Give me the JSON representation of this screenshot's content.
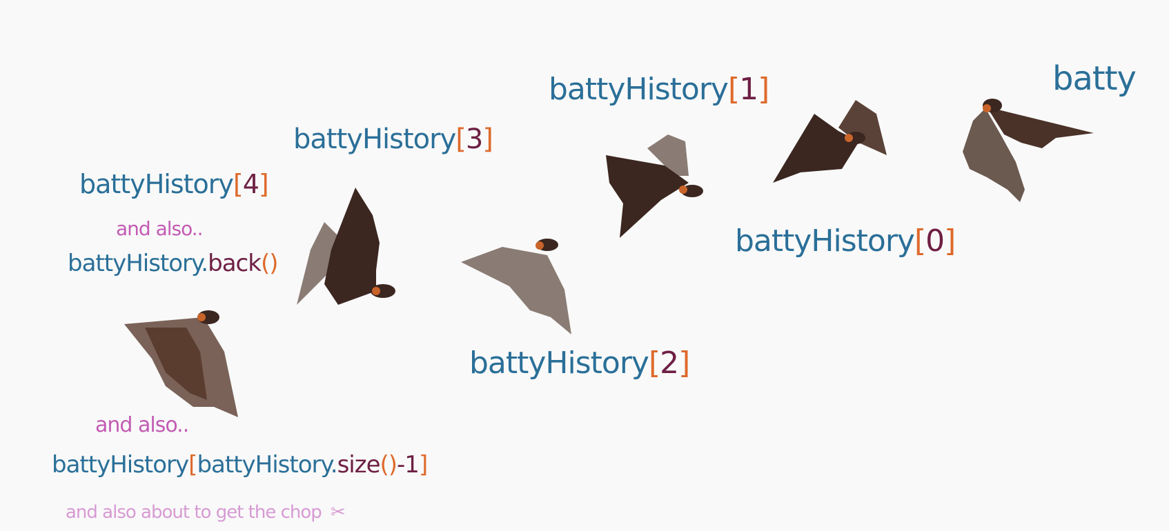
{
  "labels": {
    "batty": "batty",
    "hist1": {
      "name": "battyHistory",
      "open": "[",
      "index": "1",
      "close": "]"
    },
    "hist3": {
      "name": "battyHistory",
      "open": "[",
      "index": "3",
      "close": "]"
    },
    "hist4": {
      "name": "battyHistory",
      "open": "[",
      "index": "4",
      "close": "]"
    },
    "hist0": {
      "name": "battyHistory",
      "open": "[",
      "index": "0",
      "close": "]"
    },
    "hist2": {
      "name": "battyHistory",
      "open": "[",
      "index": "2",
      "close": "]"
    },
    "and_also_1": "and also..",
    "back": {
      "name": "battyHistory.",
      "method": "back",
      "parens": "()"
    },
    "and_also_2": "and also..",
    "size_expr": {
      "name": "battyHistory",
      "open": "[",
      "inner_name": "battyHistory.",
      "method": "size",
      "parens": "()",
      "minus": "-1",
      "close": "]"
    },
    "chop": "and also about to get the chop"
  },
  "colors": {
    "name_blue": "#2a6f98",
    "bracket_orange": "#de6a2c",
    "index_plum": "#6e1f43",
    "note_pink": "#c35bb4",
    "note_pale_pink": "#d79ad3",
    "bat_dark": "#3b2720",
    "bat_membrane": "#6b5a50",
    "bat_collar": "#c9642a",
    "background": "#f9f9f9"
  },
  "icons": {
    "bat": "flying-fox-bat-icon",
    "chop": "scissors-icon"
  }
}
